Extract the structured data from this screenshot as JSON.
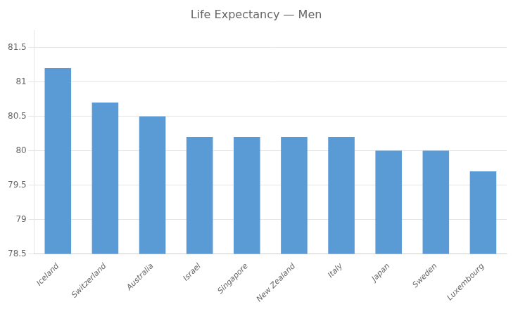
{
  "chart_data": {
    "type": "bar",
    "title": "Life Expectancy — Men",
    "categories": [
      "Iceland",
      "Switzerland",
      "Australia",
      "Israel",
      "Singapore",
      "New Zealand",
      "Italy",
      "Japan",
      "Sweden",
      "Luxembourg"
    ],
    "values": [
      81.2,
      80.7,
      80.5,
      80.2,
      80.2,
      80.2,
      80.2,
      80.0,
      80.0,
      79.7
    ],
    "color": "#5b9bd5",
    "ylim": [
      78.5,
      81.75
    ],
    "yticks": [
      78.5,
      79.0,
      79.5,
      80.0,
      80.5,
      81.0,
      81.5
    ],
    "grid": true
  }
}
